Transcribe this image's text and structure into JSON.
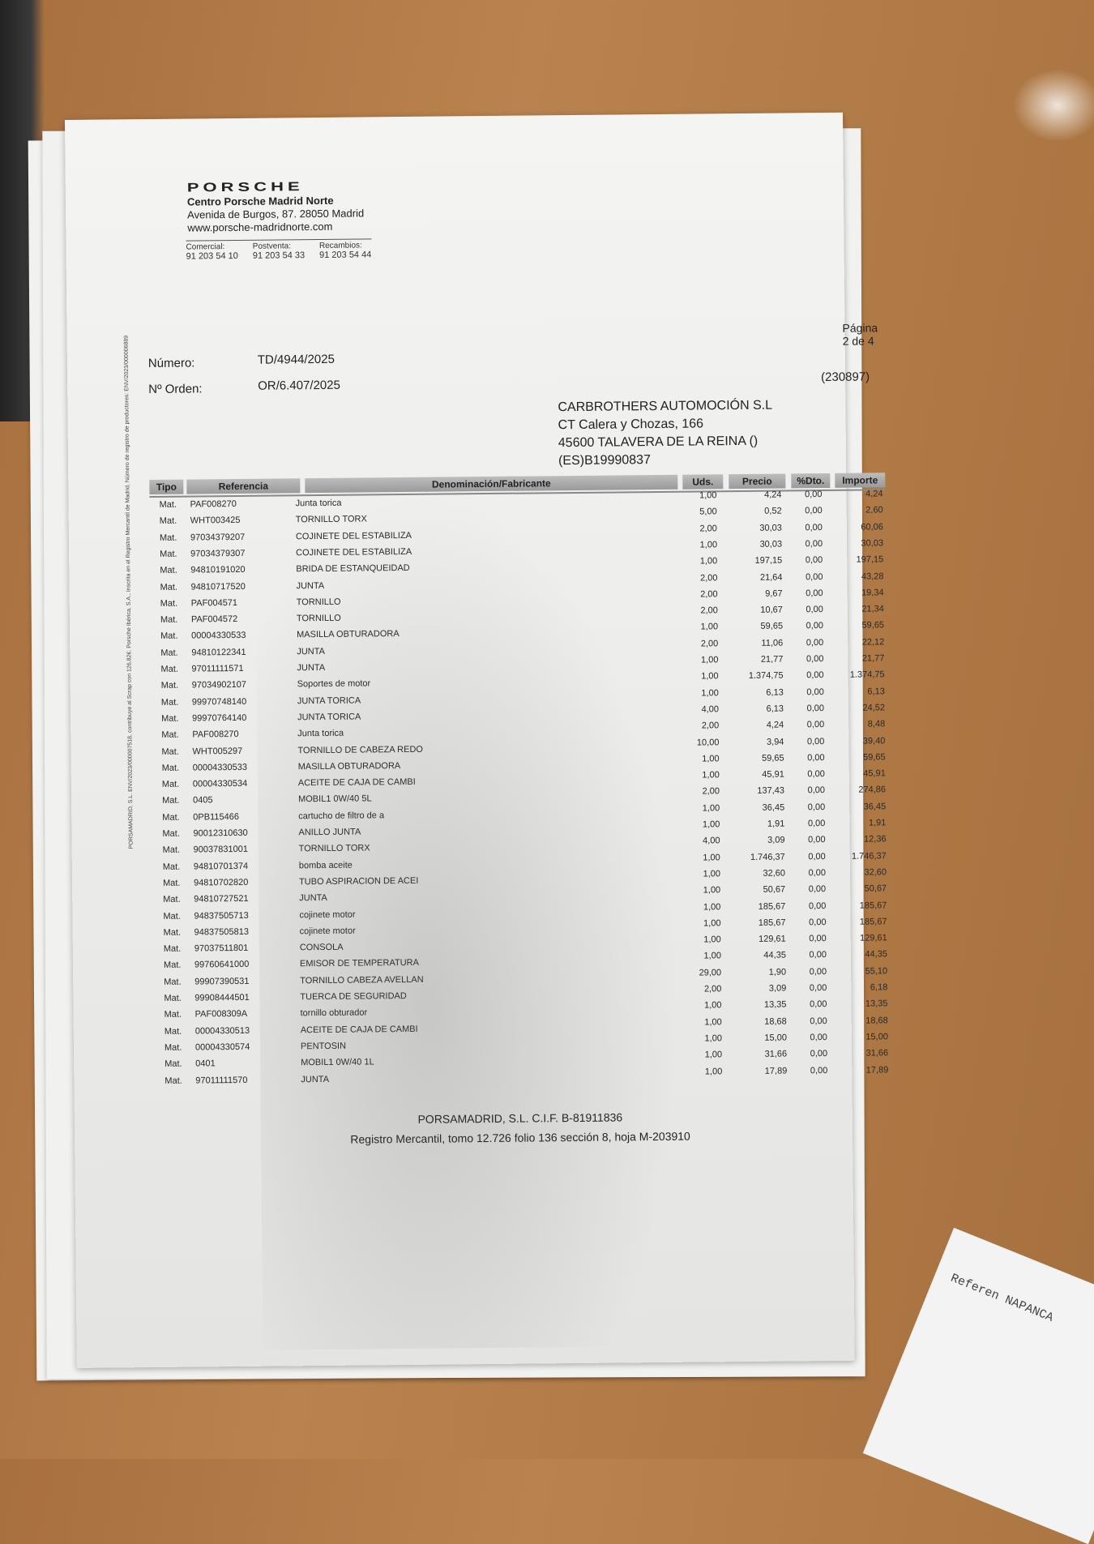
{
  "dealer": {
    "brand": "PORSCHE",
    "name": "Centro Porsche Madrid Norte",
    "address": "Avenida de Burgos, 87. 28050 Madrid",
    "web": "www.porsche-madridnorte.com",
    "phones": [
      {
        "label": "Comercial:",
        "number": "91 203 54 10"
      },
      {
        "label": "Postventa:",
        "number": "91 203 54 33"
      },
      {
        "label": "Recambios:",
        "number": "91 203 54 44"
      }
    ]
  },
  "page_label": "Página 2 de 4",
  "numero_label": "Número:",
  "numero": "TD/4944/2025",
  "orden_label": "Nº Orden:",
  "orden": "OR/6.407/2025",
  "client_code": "(230897)",
  "client": {
    "name": "CARBROTHERS AUTOMOCIÓN S.L",
    "street": "CT Calera y Chozas, 166",
    "city": "45600 TALAVERA DE LA REINA ()",
    "vat": "(ES)B19990837"
  },
  "vertical_note": "PORSAMADRID, S.L. ENV/2023/000007518, contribuye al Scrap con 126,82€. Porsche Ibérica, S.A., Inscrita en el Registro Mercantil de Madrid, Número de registro de productores: ENV/2023/000006889",
  "table": {
    "headers": [
      "Tipo",
      "Referencia",
      "Denominación/Fabricante",
      "Uds.",
      "Precio",
      "%Dto.",
      "Importe"
    ],
    "rows": [
      [
        "Mat.",
        "PAF008270",
        "Junta torica",
        "1,00",
        "4,24",
        "0,00",
        "4,24"
      ],
      [
        "Mat.",
        "WHT003425",
        "TORNILLO TORX",
        "5,00",
        "0,52",
        "0,00",
        "2,60"
      ],
      [
        "Mat.",
        "97034379207",
        "COJINETE DEL ESTABILIZA",
        "2,00",
        "30,03",
        "0,00",
        "60,06"
      ],
      [
        "Mat.",
        "97034379307",
        "COJINETE DEL ESTABILIZA",
        "1,00",
        "30,03",
        "0,00",
        "30,03"
      ],
      [
        "Mat.",
        "94810191020",
        "BRIDA DE ESTANQUEIDAD",
        "1,00",
        "197,15",
        "0,00",
        "197,15"
      ],
      [
        "Mat.",
        "94810717520",
        "JUNTA",
        "2,00",
        "21,64",
        "0,00",
        "43,28"
      ],
      [
        "Mat.",
        "PAF004571",
        "TORNILLO",
        "2,00",
        "9,67",
        "0,00",
        "19,34"
      ],
      [
        "Mat.",
        "PAF004572",
        "TORNILLO",
        "2,00",
        "10,67",
        "0,00",
        "21,34"
      ],
      [
        "Mat.",
        "00004330533",
        "MASILLA OBTURADORA",
        "1,00",
        "59,65",
        "0,00",
        "59,65"
      ],
      [
        "Mat.",
        "94810122341",
        "JUNTA",
        "2,00",
        "11,06",
        "0,00",
        "22,12"
      ],
      [
        "Mat.",
        "97011111571",
        "JUNTA",
        "1,00",
        "21,77",
        "0,00",
        "21,77"
      ],
      [
        "Mat.",
        "97034902107",
        "Soportes de motor",
        "1,00",
        "1.374,75",
        "0,00",
        "1.374,75"
      ],
      [
        "Mat.",
        "99970748140",
        "JUNTA TORICA",
        "1,00",
        "6,13",
        "0,00",
        "6,13"
      ],
      [
        "Mat.",
        "99970764140",
        "JUNTA TORICA",
        "4,00",
        "6,13",
        "0,00",
        "24,52"
      ],
      [
        "Mat.",
        "PAF008270",
        "Junta torica",
        "2,00",
        "4,24",
        "0,00",
        "8,48"
      ],
      [
        "Mat.",
        "WHT005297",
        "TORNILLO DE CABEZA REDO",
        "10,00",
        "3,94",
        "0,00",
        "39,40"
      ],
      [
        "Mat.",
        "00004330533",
        "MASILLA OBTURADORA",
        "1,00",
        "59,65",
        "0,00",
        "59,65"
      ],
      [
        "Mat.",
        "00004330534",
        "ACEITE DE CAJA DE CAMBI",
        "1,00",
        "45,91",
        "0,00",
        "45,91"
      ],
      [
        "Mat.",
        "0405",
        "MOBIL1  0W/40 5L",
        "2,00",
        "137,43",
        "0,00",
        "274,86"
      ],
      [
        "Mat.",
        "0PB115466",
        "cartucho de filtro de a",
        "1,00",
        "36,45",
        "0,00",
        "36,45"
      ],
      [
        "Mat.",
        "90012310630",
        "ANILLO JUNTA",
        "1,00",
        "1,91",
        "0,00",
        "1,91"
      ],
      [
        "Mat.",
        "90037831001",
        "TORNILLO TORX",
        "4,00",
        "3,09",
        "0,00",
        "12,36"
      ],
      [
        "Mat.",
        "94810701374",
        "bomba aceite",
        "1,00",
        "1.746,37",
        "0,00",
        "1.746,37"
      ],
      [
        "Mat.",
        "94810702820",
        "TUBO ASPIRACION DE ACEI",
        "1,00",
        "32,60",
        "0,00",
        "32,60"
      ],
      [
        "Mat.",
        "94810727521",
        "JUNTA",
        "1,00",
        "50,67",
        "0,00",
        "50,67"
      ],
      [
        "Mat.",
        "94837505713",
        "cojinete motor",
        "1,00",
        "185,67",
        "0,00",
        "185,67"
      ],
      [
        "Mat.",
        "94837505813",
        "cojinete motor",
        "1,00",
        "185,67",
        "0,00",
        "185,67"
      ],
      [
        "Mat.",
        "97037511801",
        "CONSOLA",
        "1,00",
        "129,61",
        "0,00",
        "129,61"
      ],
      [
        "Mat.",
        "99760641000",
        "EMISOR DE TEMPERATURA",
        "1,00",
        "44,35",
        "0,00",
        "44,35"
      ],
      [
        "Mat.",
        "99907390531",
        "TORNILLO CABEZA AVELLAN",
        "29,00",
        "1,90",
        "0,00",
        "55,10"
      ],
      [
        "Mat.",
        "99908444501",
        "TUERCA DE SEGURIDAD",
        "2,00",
        "3,09",
        "0,00",
        "6,18"
      ],
      [
        "Mat.",
        "PAF008309A",
        "tornillo obturador",
        "1,00",
        "13,35",
        "0,00",
        "13,35"
      ],
      [
        "Mat.",
        "00004330513",
        "ACEITE DE CAJA DE CAMBI",
        "1,00",
        "18,68",
        "0,00",
        "18,68"
      ],
      [
        "Mat.",
        "00004330574",
        "PENTOSIN",
        "1,00",
        "15,00",
        "0,00",
        "15,00"
      ],
      [
        "Mat.",
        "0401",
        "MOBIL1  0W/40 1L",
        "1,00",
        "31,66",
        "0,00",
        "31,66"
      ],
      [
        "Mat.",
        "97011111570",
        "JUNTA",
        "1,00",
        "17,89",
        "0,00",
        "17,89"
      ]
    ]
  },
  "footer": {
    "line1": "PORSAMADRID, S.L. C.I.F. B-81911836",
    "line2": "Registro Mercantil, tomo 12.726 folio 136 sección 8, hoja M-203910"
  },
  "receipt_text": "Referen NAPANCA"
}
